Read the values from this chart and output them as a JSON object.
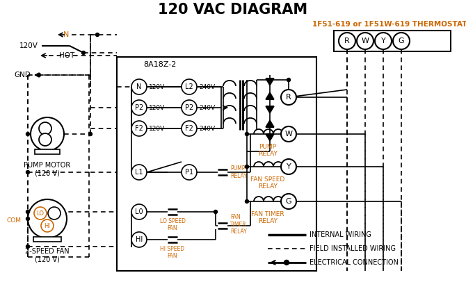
{
  "title": "120 VAC DIAGRAM",
  "title_fontsize": 15,
  "bg_color": "#ffffff",
  "line_color": "#000000",
  "orange_color": "#cc6600",
  "thermostat_label": "1F51-619 or 1F51W-619 THERMOSTAT",
  "control_box_label": "8A18Z-2",
  "legend_items": [
    {
      "label": "INTERNAL WIRING",
      "style": "solid"
    },
    {
      "label": "FIELD INSTALLED WIRING",
      "style": "dashed"
    },
    {
      "label": "ELECTRICAL CONNECTION",
      "style": "dot"
    }
  ],
  "terminal_labels": [
    "R",
    "W",
    "Y",
    "G"
  ],
  "left_terms_top": [
    "N",
    "P2",
    "F2"
  ],
  "left_volts_top": [
    "120V",
    "120V",
    "120V"
  ],
  "right_terms_top": [
    "L2",
    "P2",
    "F2"
  ],
  "right_volts_top": [
    "240V",
    "240V",
    "240V"
  ],
  "relay_labels_right": [
    "R",
    "W",
    "Y",
    "G"
  ],
  "pump_motor_label": "PUMP MOTOR\n(120 V)",
  "fan_label": "2-SPEED FAN\n(120 V)"
}
